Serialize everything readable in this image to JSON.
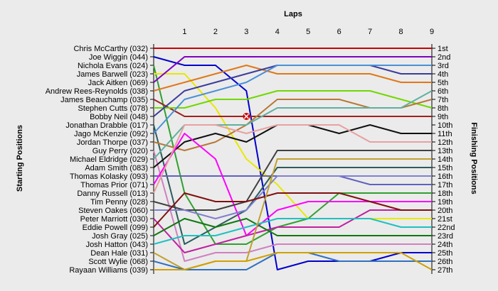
{
  "chart_data": {
    "type": "line",
    "title": "Laps",
    "ylabel_left": "Starting Positions",
    "ylabel_right": "Finishing Positions",
    "x": [
      0,
      1,
      2,
      3,
      4,
      5,
      6,
      7,
      8,
      9
    ],
    "x_tick_labels": [
      "1",
      "2",
      "3",
      "4",
      "5",
      "6",
      "7",
      "8",
      "9"
    ],
    "start_labels": [
      "Chris McCarthy (032)",
      "Joe Wiggin (044)",
      "Nichola Evans (024)",
      "James Barwell (023)",
      "Jack Aitken (069)",
      "Andrew Rees-Reynolds (038)",
      "James Beauchamp (035)",
      "Stephen Cutts (078)",
      "Bobby Neil (048)",
      "Jonathan Drabble (017)",
      "Jago McKenzie (092)",
      "Jordan Thorpe (037)",
      "Guy Perry (020)",
      "Michael Eldridge (029)",
      "Adam Smith (083)",
      "Thomas Kolasky (093)",
      "Thomas Prior (071)",
      "Danny Russell (013)",
      "Tim Penny (028)",
      "Steven Oakes (060)",
      "Peter Marriott (030)",
      "Eddie Powell (099)",
      "Josh Gray (025)",
      "Josh Hatton (043)",
      "Dean Hale (031)",
      "Scott Wylie (068)",
      "Rayaan Williams (039)"
    ],
    "finish_labels": [
      "1st",
      "2nd",
      "3rd",
      "4th",
      "5th",
      "6th",
      "7th",
      "8th",
      "9th",
      "10th",
      "11th",
      "12th",
      "13th",
      "14th",
      "15th",
      "16th",
      "17th",
      "18th",
      "19th",
      "20th",
      "21st",
      "22nd",
      "23rd",
      "24th",
      "25th",
      "26th",
      "27th"
    ],
    "ylim": [
      1,
      27
    ],
    "grid": false,
    "annotations": [
      {
        "type": "retirement-marker",
        "x": 3,
        "y": 9
      }
    ],
    "series": [
      {
        "color": "#cc0000",
        "values": [
          1,
          1,
          1,
          1,
          1,
          1,
          1,
          1,
          1,
          1
        ]
      },
      {
        "color": "#0000cc",
        "values": [
          2,
          3,
          3,
          6,
          27,
          26,
          26,
          26,
          25,
          25
        ]
      },
      {
        "color": "#30a030",
        "values": [
          3,
          18,
          24,
          24,
          22,
          21,
          18,
          18,
          18,
          18
        ]
      },
      {
        "color": "#e8e800",
        "values": [
          4,
          4,
          8,
          14,
          17,
          21,
          21,
          21,
          21,
          21
        ]
      },
      {
        "color": "#8000c0",
        "values": [
          5,
          2,
          2,
          2,
          2,
          2,
          2,
          2,
          2,
          2
        ]
      },
      {
        "color": "#e07818",
        "values": [
          6,
          5,
          4,
          3,
          4,
          4,
          4,
          4,
          5,
          5
        ]
      },
      {
        "color": "#a02020",
        "values": [
          7,
          9,
          9,
          9,
          9,
          9,
          9,
          9,
          9,
          9
        ]
      },
      {
        "color": "#70d800",
        "values": [
          8,
          8,
          7,
          7,
          6,
          6,
          6,
          6,
          7,
          8
        ]
      },
      {
        "color": "#3c3c9c",
        "values": [
          9,
          6,
          5,
          4,
          3,
          3,
          3,
          3,
          4,
          4
        ]
      },
      {
        "color": "#2c5c5c",
        "values": [
          10,
          24,
          22,
          20,
          15,
          15,
          15,
          15,
          15,
          15
        ]
      },
      {
        "color": "#4a90d8",
        "values": [
          11,
          7,
          6,
          5,
          3,
          3,
          3,
          3,
          3,
          3
        ]
      },
      {
        "color": "#b87838",
        "values": [
          12,
          13,
          12,
          10,
          7,
          7,
          7,
          8,
          8,
          7
        ]
      },
      {
        "color": "#d080c0",
        "values": [
          13,
          26,
          25,
          25,
          24,
          24,
          24,
          24,
          24,
          24
        ]
      },
      {
        "color": "#60b0a0",
        "values": [
          14,
          10,
          10,
          10,
          8,
          8,
          8,
          8,
          8,
          6
        ]
      },
      {
        "color": "#101010",
        "values": [
          15,
          12,
          11,
          12,
          10,
          10,
          11,
          10,
          11,
          11
        ]
      },
      {
        "color": "#6060c0",
        "values": [
          16,
          16,
          16,
          16,
          16,
          16,
          16,
          17,
          17,
          17
        ]
      },
      {
        "color": "#ff00ff",
        "values": [
          17,
          11,
          14,
          23,
          20,
          19,
          19,
          19,
          19,
          19
        ]
      },
      {
        "color": "#e8a0a0",
        "values": [
          18,
          10,
          10,
          11,
          10,
          10,
          10,
          12,
          12,
          12
        ]
      },
      {
        "color": "#404040",
        "values": [
          19,
          20,
          20,
          19,
          13,
          13,
          13,
          13,
          13,
          13
        ]
      },
      {
        "color": "#8080d0",
        "values": [
          20,
          20,
          21,
          20,
          16,
          16,
          16,
          16,
          16,
          16
        ]
      },
      {
        "color": "#c020a0",
        "values": [
          21,
          25,
          24,
          23,
          22,
          22,
          22,
          20,
          20,
          20
        ]
      },
      {
        "color": "#801010",
        "values": [
          22,
          18,
          19,
          19,
          18,
          18,
          18,
          19,
          20,
          20
        ]
      },
      {
        "color": "#107810",
        "values": [
          23,
          21,
          22,
          21,
          23,
          23,
          23,
          23,
          23,
          23
        ]
      },
      {
        "color": "#20c0c0",
        "values": [
          24,
          23,
          23,
          22,
          21,
          21,
          21,
          21,
          22,
          22
        ]
      },
      {
        "color": "#c0a030",
        "values": [
          25,
          27,
          26,
          26,
          14,
          14,
          14,
          14,
          14,
          14
        ]
      },
      {
        "color": "#3070c0",
        "values": [
          26,
          27,
          27,
          27,
          25,
          25,
          26,
          26,
          26,
          26
        ]
      },
      {
        "color": "#d0a000",
        "values": [
          27,
          27,
          26,
          26,
          25,
          25,
          25,
          25,
          25,
          27
        ]
      }
    ]
  }
}
